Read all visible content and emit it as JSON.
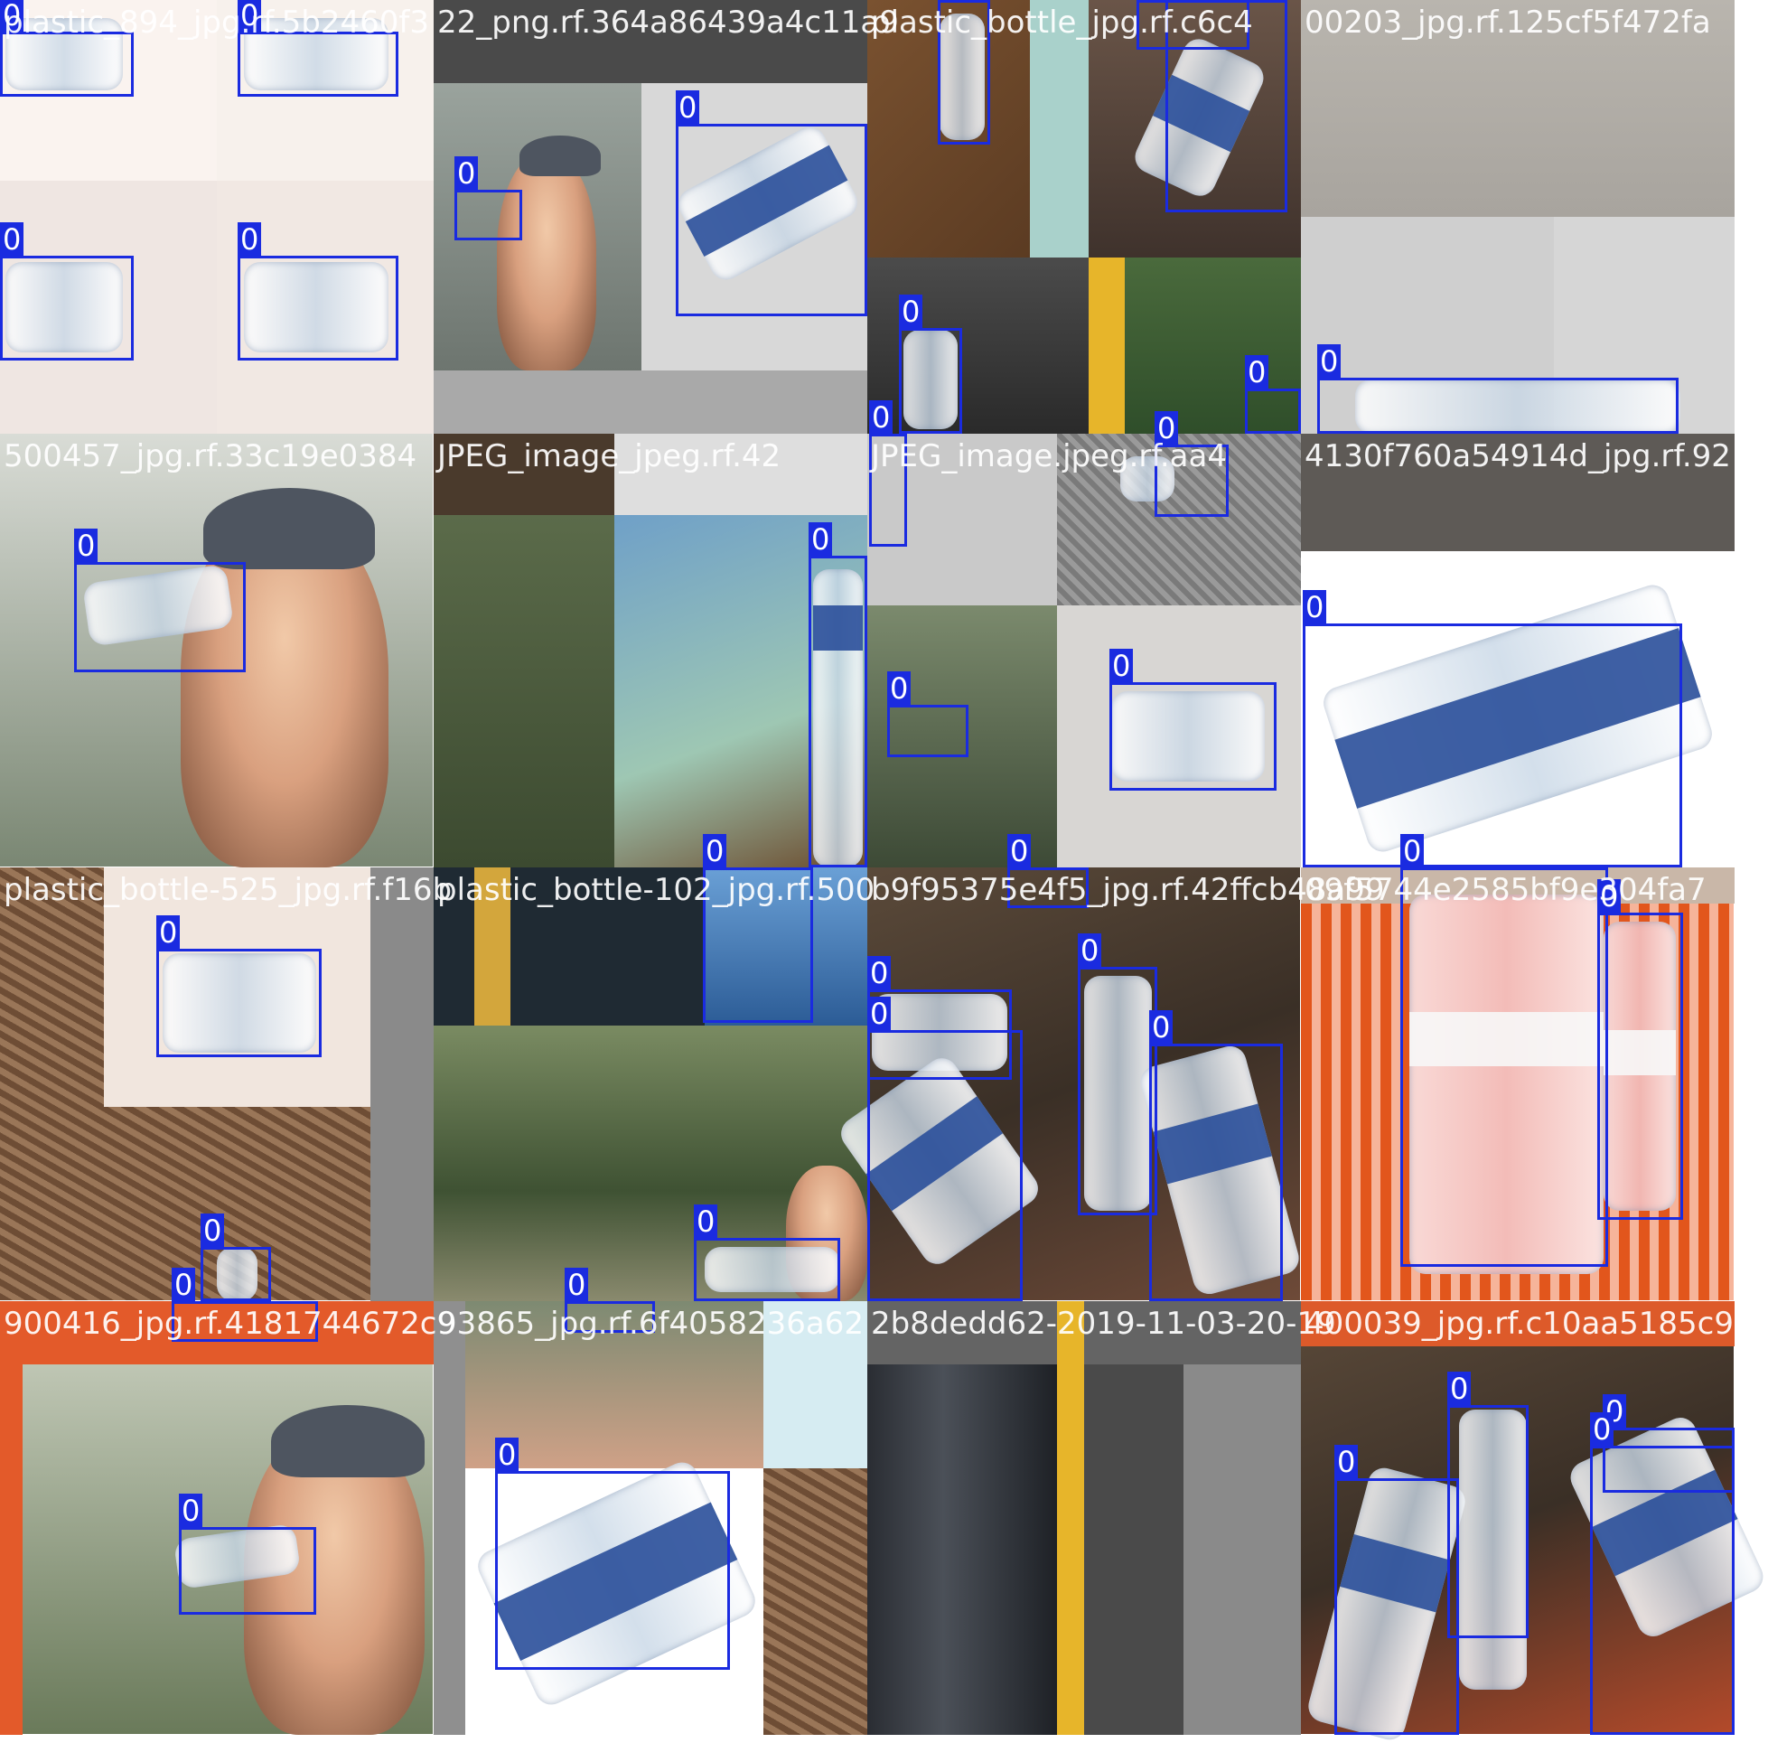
{
  "class_label": "0",
  "box_color": "#1a2be0",
  "tiles": [
    {
      "caption": "plastic_894_jpg.rf.5b2460f3",
      "boxes": 4,
      "scene": "white-corner-bottles"
    },
    {
      "caption": "22_png.rf.364a86439a4c11a9",
      "boxes": 2,
      "scene": "woman-drinking-gray"
    },
    {
      "caption": "plastic_bottle_jpg.rf.c6c4",
      "boxes": 4,
      "scene": "mixed-bottles-debris"
    },
    {
      "caption": "00203_jpg.rf.125cf5f472fa",
      "boxes": 1,
      "scene": "asphalt-floor"
    },
    {
      "caption": "500457_jpg.rf.33c19e0384",
      "boxes": 1,
      "scene": "woman-drinking-closeup"
    },
    {
      "caption": "JPEG_image_jpeg.rf.42",
      "boxes": 1,
      "scene": "painted-wall-bottle"
    },
    {
      "caption": "JPEG_image.jpeg.rf.aa4",
      "boxes": 4,
      "scene": "grass-mosaic"
    },
    {
      "caption": "4130f760a54914d_jpg.rf.92",
      "boxes": 1,
      "scene": "large-white-bottle"
    },
    {
      "caption": "plastic_bottle-525_jpg.rf.f16b",
      "boxes": 3,
      "scene": "bottle-on-pine-needles"
    },
    {
      "caption": "plastic_bottle-102_jpg.rf.500",
      "boxes": 2,
      "scene": "blurred-park"
    },
    {
      "caption": "b9f95375e4f5_jpg.rf.42ffcb48a99",
      "boxes": 5,
      "scene": "crushed-bottles-leaves"
    },
    {
      "caption": "09f5744e2585bf9e304fa7",
      "boxes": 2,
      "scene": "aura-bottles-basket"
    },
    {
      "caption": "900416_jpg.rf.4181744672c9",
      "boxes": 1,
      "scene": "woman-drinking-orange"
    },
    {
      "caption": "93865_jpg.rf.6f4058236a62",
      "boxes": 1,
      "scene": "white-bottle-product"
    },
    {
      "caption": "2b8dedd62-2019-11-03-20-19",
      "boxes": 0,
      "scene": "dark-vertical-stripes"
    },
    {
      "caption": "400039_jpg.rf.c10aa5185c9",
      "boxes": 4,
      "scene": "bottles-in-litter"
    }
  ]
}
